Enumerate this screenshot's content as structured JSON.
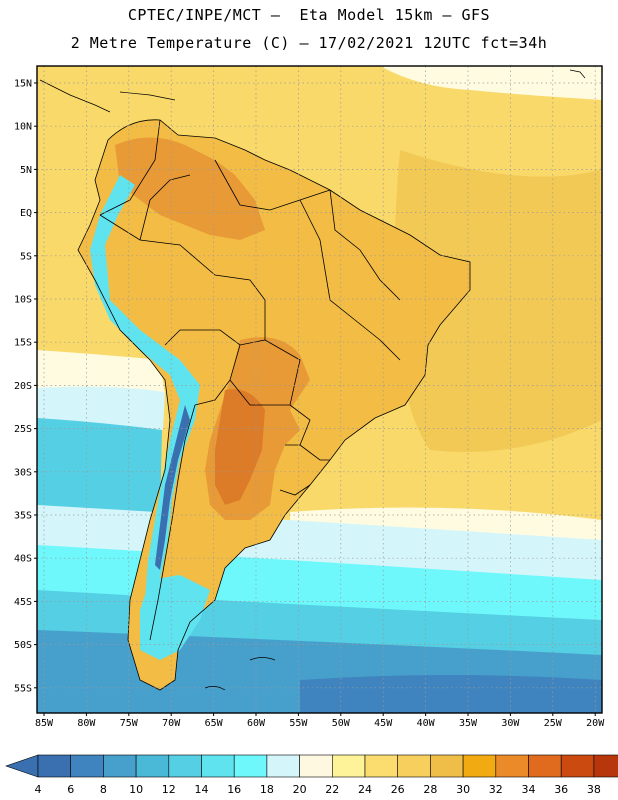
{
  "title_line1": "CPTEC/INPE/MCT –  Eta Model 15km – GFS",
  "title_line2": "2 Metre Temperature (C) – 17/02/2021 12UTC fct=34h",
  "lat_labels": [
    "15N",
    "10N",
    "5N",
    "EQ",
    "5S",
    "10S",
    "15S",
    "20S",
    "25S",
    "30S",
    "35S",
    "40S",
    "45S",
    "50S",
    "55S"
  ],
  "lon_labels": [
    "85W",
    "80W",
    "75W",
    "70W",
    "65W",
    "60W",
    "55W",
    "50W",
    "45W",
    "40W",
    "35W",
    "30W",
    "25W",
    "20W"
  ],
  "colorbar": {
    "labels": [
      "4",
      "6",
      "8",
      "10",
      "12",
      "14",
      "16",
      "18",
      "20",
      "22",
      "24",
      "26",
      "28",
      "30",
      "32",
      "34",
      "36",
      "38"
    ],
    "colors": [
      "#3a6fb0",
      "#3f84bf",
      "#47a0cc",
      "#4ab9d8",
      "#55cfe3",
      "#5fe3ef",
      "#6ff8fb",
      "#d4f6fa",
      "#fff8e0",
      "#fff39a",
      "#fbdc6e",
      "#f6cf5c",
      "#efbe48",
      "#f2aa12",
      "#ea8a28",
      "#e06a1e",
      "#ca4a10",
      "#b8360c"
    ]
  },
  "map_colors": {
    "ocean_n": "#f9d969",
    "ocean_warm": "#f3c956",
    "ocean_pale": "#fffbe0",
    "ocean_cool1": "#d4f6fa",
    "ocean_cool2": "#6ff8fb",
    "ocean_cool3": "#55cfe3",
    "ocean_cool4": "#47a0cc",
    "ocean_cool5": "#3f84bf",
    "land_base": "#f3bd45",
    "land_hot": "#e89a36",
    "land_hotter": "#dc7b28",
    "andes": "#5fe3ef",
    "andes_cold": "#3a6fb0"
  }
}
